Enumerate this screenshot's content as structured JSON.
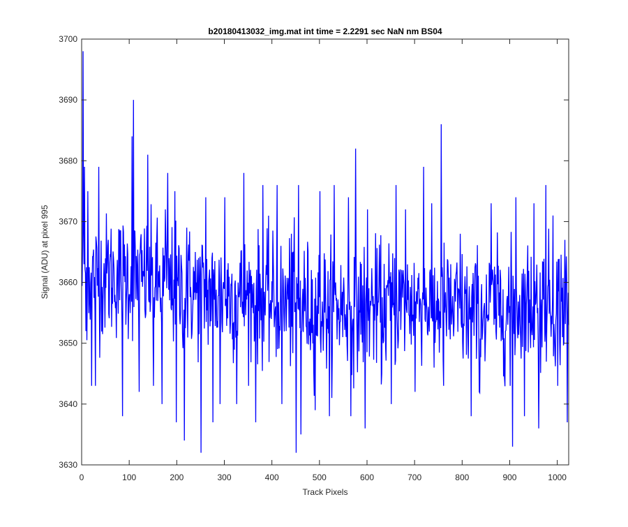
{
  "chart_data": {
    "type": "line",
    "title": "b20180413032_img.mat int time = 2.2291 sec  NaN nm BS04",
    "xlabel": "Track Pixels",
    "ylabel": "Signal (ADU) at pixel 995",
    "xlim": [
      0,
      1024
    ],
    "ylim": [
      3630,
      3700
    ],
    "xticks": [
      0,
      100,
      200,
      300,
      400,
      500,
      600,
      700,
      800,
      900,
      1000
    ],
    "yticks": [
      3630,
      3640,
      3650,
      3660,
      3670,
      3680,
      3690,
      3700
    ],
    "grid": false,
    "legend": "none",
    "series": [
      {
        "color": "#0000ff",
        "noise_model": {
          "points": 1024,
          "amplitude": 6,
          "baseline": [
            [
              0,
              3661
            ],
            [
              100,
              3661
            ],
            [
              200,
              3659
            ],
            [
              300,
              3658
            ],
            [
              400,
              3657
            ],
            [
              500,
              3656
            ],
            [
              600,
              3656
            ],
            [
              700,
              3657
            ],
            [
              800,
              3655
            ],
            [
              900,
              3656
            ],
            [
              1024,
              3657
            ]
          ]
        },
        "features": [
          [
            2,
            3698
          ],
          [
            5,
            3679
          ],
          [
            8,
            3652
          ],
          [
            12,
            3675
          ],
          [
            20,
            3643
          ],
          [
            28,
            3643
          ],
          [
            35,
            3679
          ],
          [
            55,
            3667
          ],
          [
            85,
            3638
          ],
          [
            105,
            3684
          ],
          [
            108,
            3690
          ],
          [
            120,
            3642
          ],
          [
            138,
            3681
          ],
          [
            150,
            3643
          ],
          [
            168,
            3640
          ],
          [
            175,
            3672
          ],
          [
            180,
            3678
          ],
          [
            195,
            3675
          ],
          [
            198,
            3637
          ],
          [
            215,
            3634
          ],
          [
            220,
            3669
          ],
          [
            250,
            3632
          ],
          [
            260,
            3674
          ],
          [
            275,
            3637
          ],
          [
            290,
            3640
          ],
          [
            300,
            3674
          ],
          [
            325,
            3640
          ],
          [
            340,
            3678
          ],
          [
            350,
            3643
          ],
          [
            365,
            3637
          ],
          [
            380,
            3676
          ],
          [
            410,
            3676
          ],
          [
            420,
            3640
          ],
          [
            440,
            3668
          ],
          [
            450,
            3632
          ],
          [
            455,
            3676
          ],
          [
            460,
            3635
          ],
          [
            490,
            3639
          ],
          [
            500,
            3675
          ],
          [
            520,
            3638
          ],
          [
            530,
            3676
          ],
          [
            560,
            3674
          ],
          [
            565,
            3638
          ],
          [
            575,
            3682
          ],
          [
            595,
            3636
          ],
          [
            600,
            3672
          ],
          [
            630,
            3645
          ],
          [
            650,
            3640
          ],
          [
            660,
            3676
          ],
          [
            680,
            3672
          ],
          [
            700,
            3642
          ],
          [
            718,
            3679
          ],
          [
            740,
            3646
          ],
          [
            755,
            3686
          ],
          [
            760,
            3643
          ],
          [
            795,
            3668
          ],
          [
            818,
            3638
          ],
          [
            835,
            3642
          ],
          [
            860,
            3673
          ],
          [
            890,
            3652
          ],
          [
            900,
            3643
          ],
          [
            905,
            3633
          ],
          [
            912,
            3674
          ],
          [
            930,
            3638
          ],
          [
            950,
            3673
          ],
          [
            960,
            3636
          ],
          [
            975,
            3676
          ],
          [
            990,
            3671
          ],
          [
            1000,
            3643
          ],
          [
            1010,
            3651
          ],
          [
            1015,
            3667
          ],
          [
            1020,
            3637
          ],
          [
            1023,
            3653
          ]
        ]
      }
    ]
  }
}
